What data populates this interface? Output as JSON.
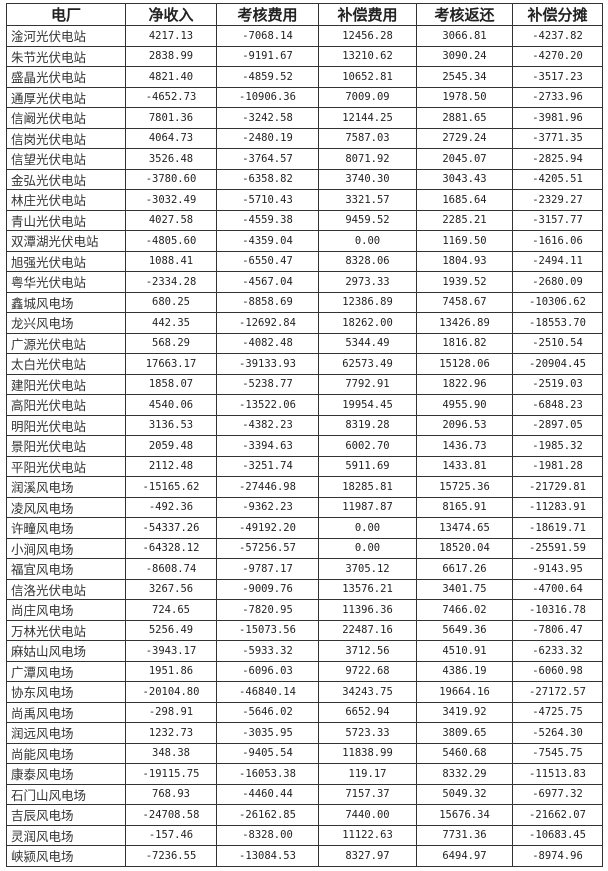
{
  "table": {
    "headers": [
      "电厂",
      "净收入",
      "考核费用",
      "补偿费用",
      "考核返还",
      "补偿分摊"
    ],
    "rows": [
      [
        "淦河光伏电站",
        "4217.13",
        "-7068.14",
        "12456.28",
        "3066.81",
        "-4237.82"
      ],
      [
        "朱节光伏电站",
        "2838.99",
        "-9191.67",
        "13210.62",
        "3090.24",
        "-4270.20"
      ],
      [
        "盛晶光伏电站",
        "4821.40",
        "-4859.52",
        "10652.81",
        "2545.34",
        "-3517.23"
      ],
      [
        "通厚光伏电站",
        "-4652.73",
        "-10906.36",
        "7009.09",
        "1978.50",
        "-2733.96"
      ],
      [
        "信阚光伏电站",
        "7801.36",
        "-3242.58",
        "12144.25",
        "2881.65",
        "-3981.96"
      ],
      [
        "信岗光伏电站",
        "4064.73",
        "-2480.19",
        "7587.03",
        "2729.24",
        "-3771.35"
      ],
      [
        "信望光伏电站",
        "3526.48",
        "-3764.57",
        "8071.92",
        "2045.07",
        "-2825.94"
      ],
      [
        "金弘光伏电站",
        "-3780.60",
        "-6358.82",
        "3740.30",
        "3043.43",
        "-4205.51"
      ],
      [
        "林庄光伏电站",
        "-3032.49",
        "-5710.43",
        "3321.57",
        "1685.64",
        "-2329.27"
      ],
      [
        "青山光伏电站",
        "4027.58",
        "-4559.38",
        "9459.52",
        "2285.21",
        "-3157.77"
      ],
      [
        "双潭湖光伏电站",
        "-4805.60",
        "-4359.04",
        "0.00",
        "1169.50",
        "-1616.06"
      ],
      [
        "旭强光伏电站",
        "1088.41",
        "-6550.47",
        "8328.06",
        "1804.93",
        "-2494.11"
      ],
      [
        "粤华光伏电站",
        "-2334.28",
        "-4567.04",
        "2973.33",
        "1939.52",
        "-2680.09"
      ],
      [
        "鑫城风电场",
        "680.25",
        "-8858.69",
        "12386.89",
        "7458.67",
        "-10306.62"
      ],
      [
        "龙兴风电场",
        "442.35",
        "-12692.84",
        "18262.00",
        "13426.89",
        "-18553.70"
      ],
      [
        "广源光伏电站",
        "568.29",
        "-4082.48",
        "5344.49",
        "1816.82",
        "-2510.54"
      ],
      [
        "太白光伏电站",
        "17663.17",
        "-39133.93",
        "62573.49",
        "15128.06",
        "-20904.45"
      ],
      [
        "建阳光伏电站",
        "1858.07",
        "-5238.77",
        "7792.91",
        "1822.96",
        "-2519.03"
      ],
      [
        "高阳光伏电站",
        "4540.06",
        "-13522.06",
        "19954.45",
        "4955.90",
        "-6848.23"
      ],
      [
        "明阳光伏电站",
        "3136.53",
        "-4382.23",
        "8319.28",
        "2096.53",
        "-2897.05"
      ],
      [
        "景阳光伏电站",
        "2059.48",
        "-3394.63",
        "6002.70",
        "1436.73",
        "-1985.32"
      ],
      [
        "平阳光伏电站",
        "2112.48",
        "-3251.74",
        "5911.69",
        "1433.81",
        "-1981.28"
      ],
      [
        "润溪风电场",
        "-15165.62",
        "-27446.98",
        "18285.81",
        "15725.36",
        "-21729.81"
      ],
      [
        "凌风风电场",
        "-492.36",
        "-9362.23",
        "11987.87",
        "8165.91",
        "-11283.91"
      ],
      [
        "许疃风电场",
        "-54337.26",
        "-49192.20",
        "0.00",
        "13474.65",
        "-18619.71"
      ],
      [
        "小涧风电场",
        "-64328.12",
        "-57256.57",
        "0.00",
        "18520.04",
        "-25591.59"
      ],
      [
        "福宜风电场",
        "-8608.74",
        "-9787.17",
        "3705.12",
        "6617.26",
        "-9143.95"
      ],
      [
        "信洛光伏电站",
        "3267.56",
        "-9009.76",
        "13576.21",
        "3401.75",
        "-4700.64"
      ],
      [
        "尚庄风电场",
        "724.65",
        "-7820.95",
        "11396.36",
        "7466.02",
        "-10316.78"
      ],
      [
        "万林光伏电站",
        "5256.49",
        "-15073.56",
        "22487.16",
        "5649.36",
        "-7806.47"
      ],
      [
        "麻姑山风电场",
        "-3943.17",
        "-5933.32",
        "3712.56",
        "4510.91",
        "-6233.32"
      ],
      [
        "广潭风电场",
        "1951.86",
        "-6096.03",
        "9722.68",
        "4386.19",
        "-6060.98"
      ],
      [
        "协东风电场",
        "-20104.80",
        "-46840.14",
        "34243.75",
        "19664.16",
        "-27172.57"
      ],
      [
        "尚禹风电场",
        "-298.91",
        "-5646.02",
        "6652.94",
        "3419.92",
        "-4725.75"
      ],
      [
        "润远风电场",
        "1232.73",
        "-3035.95",
        "5723.33",
        "3809.65",
        "-5264.30"
      ],
      [
        "尚能风电场",
        "348.38",
        "-9405.54",
        "11838.99",
        "5460.68",
        "-7545.75"
      ],
      [
        "康泰风电场",
        "-19115.75",
        "-16053.38",
        "119.17",
        "8332.29",
        "-11513.83"
      ],
      [
        "石门山风电场",
        "768.93",
        "-4460.44",
        "7157.37",
        "5049.32",
        "-6977.32"
      ],
      [
        "吉辰风电场",
        "-24708.58",
        "-26162.85",
        "7440.00",
        "15676.34",
        "-21662.07"
      ],
      [
        "灵润风电场",
        "-157.46",
        "-8328.00",
        "11122.63",
        "7731.36",
        "-10683.45"
      ],
      [
        "峡颍风电场",
        "-7236.55",
        "-13084.53",
        "8327.97",
        "6494.97",
        "-8974.96"
      ]
    ]
  }
}
